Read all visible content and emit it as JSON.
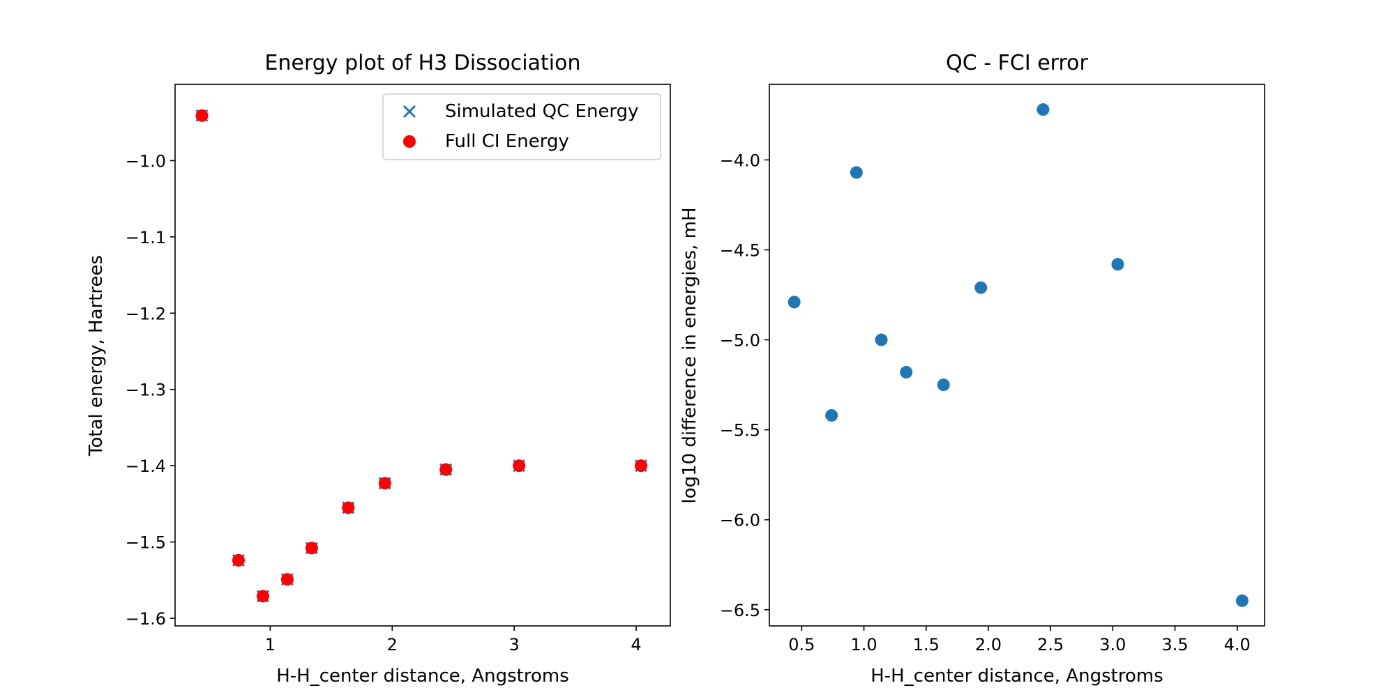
{
  "chart_data": [
    {
      "type": "scatter",
      "title": "Energy plot of H3 Dissociation",
      "xlabel": "H-H_center distance, Angstroms",
      "ylabel": "Total energy, Hartrees",
      "xlim": [
        0.22,
        4.28
      ],
      "ylim": [
        -1.61,
        -0.9
      ],
      "xticks": [
        1,
        2,
        3,
        4
      ],
      "xtick_labels": [
        "1",
        "2",
        "3",
        "4"
      ],
      "yticks": [
        -1.0,
        -1.1,
        -1.2,
        -1.3,
        -1.4,
        -1.5,
        -1.6
      ],
      "ytick_labels": [
        "−1.0",
        "−1.1",
        "−1.2",
        "−1.3",
        "−1.4",
        "−1.5",
        "−1.6"
      ],
      "legend_position": "top-right",
      "grid": false,
      "series": [
        {
          "name": "Simulated QC Energy",
          "marker": "x",
          "color": "#1f77b4",
          "x": [
            0.44,
            0.74,
            0.94,
            1.14,
            1.34,
            1.64,
            1.94,
            2.44,
            3.04,
            4.04
          ],
          "y": [
            -0.941,
            -1.524,
            -1.571,
            -1.549,
            -1.508,
            -1.455,
            -1.423,
            -1.405,
            -1.4,
            -1.4
          ]
        },
        {
          "name": "Full CI Energy",
          "marker": "o",
          "color": "#ff0000",
          "x": [
            0.44,
            0.74,
            0.94,
            1.14,
            1.34,
            1.64,
            1.94,
            2.44,
            3.04,
            4.04
          ],
          "y": [
            -0.941,
            -1.524,
            -1.571,
            -1.549,
            -1.508,
            -1.455,
            -1.423,
            -1.405,
            -1.4,
            -1.4
          ]
        }
      ]
    },
    {
      "type": "scatter",
      "title": "QC - FCI error",
      "xlabel": "H-H_center distance, Angstroms",
      "ylabel": "log10 difference in energies, mH",
      "xlim": [
        0.24,
        4.22
      ],
      "ylim": [
        -6.59,
        -3.58
      ],
      "xticks": [
        0.5,
        1.0,
        1.5,
        2.0,
        2.5,
        3.0,
        3.5,
        4.0
      ],
      "xtick_labels": [
        "0.5",
        "1.0",
        "1.5",
        "2.0",
        "2.5",
        "3.0",
        "3.5",
        "4.0"
      ],
      "yticks": [
        -4.0,
        -4.5,
        -5.0,
        -5.5,
        -6.0,
        -6.5
      ],
      "ytick_labels": [
        "−4.0",
        "−4.5",
        "−5.0",
        "−5.5",
        "−6.0",
        "−6.5"
      ],
      "grid": false,
      "series": [
        {
          "marker": "o",
          "color": "#1f77b4",
          "x": [
            0.44,
            0.74,
            0.94,
            1.14,
            1.34,
            1.64,
            1.94,
            2.44,
            3.04,
            4.04
          ],
          "y": [
            -4.79,
            -5.42,
            -4.07,
            -5.0,
            -5.18,
            -5.25,
            -4.71,
            -3.72,
            -4.58,
            -6.45
          ]
        }
      ]
    }
  ]
}
